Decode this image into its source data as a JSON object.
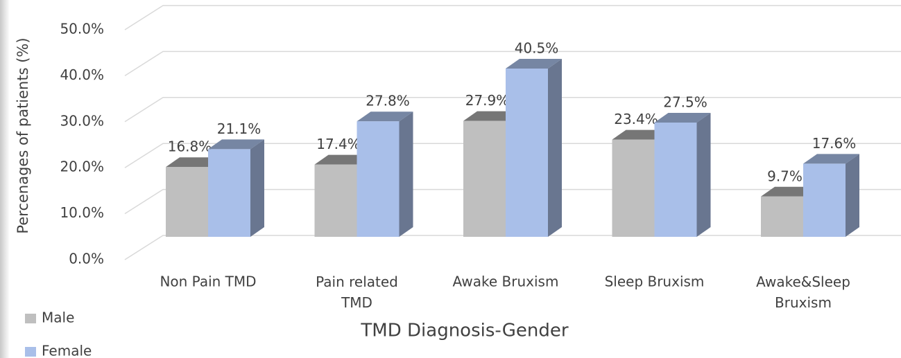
{
  "chart_data": {
    "type": "bar3d",
    "xlabel": "TMD Diagnosis-Gender",
    "ylabel": "Percenages of patients (%)",
    "categories": [
      "Non Pain TMD",
      "Pain related TMD",
      "Awake Bruxism",
      "Sleep Bruxism",
      "Awake&Sleep Bruxism"
    ],
    "series": [
      {
        "name": "Male",
        "color": "#bfbfbf",
        "values": [
          16.8,
          17.4,
          27.9,
          23.4,
          9.7
        ],
        "value_labels": [
          "16.8%",
          "17.4%",
          "27.9%",
          "23.4%",
          "9.7%"
        ]
      },
      {
        "name": "Female",
        "color": "#a9bfe9",
        "values": [
          21.1,
          27.8,
          40.5,
          27.5,
          17.6
        ],
        "value_labels": [
          "21.1%",
          "27.8%",
          "40.5%",
          "27.5%",
          "17.6%"
        ]
      }
    ],
    "ylim": [
      0,
      50
    ],
    "yticks": [
      {
        "value": 0,
        "label": "0.0%"
      },
      {
        "value": 10,
        "label": "10.0%"
      },
      {
        "value": 20,
        "label": "20.0%"
      },
      {
        "value": 30,
        "label": "30.0%"
      },
      {
        "value": 40,
        "label": "40.0%"
      },
      {
        "value": 50,
        "label": "50.0%"
      }
    ],
    "grid": true,
    "legend": "bottom-left"
  }
}
